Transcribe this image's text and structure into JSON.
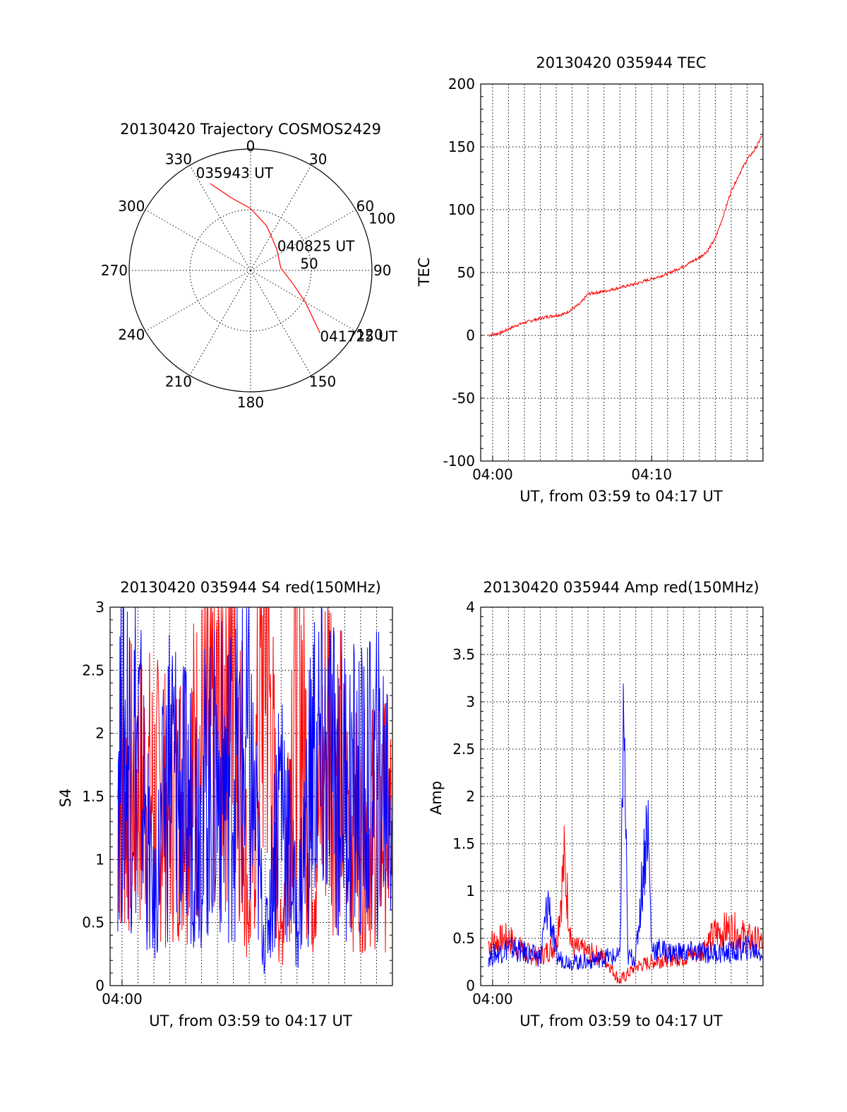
{
  "chart_data": [
    {
      "type": "polar",
      "title": "20130420 Trajectory COSMOS2429",
      "angle_labels": [
        "0",
        "30",
        "60",
        "90",
        "120",
        "150",
        "180",
        "210",
        "240",
        "270",
        "300",
        "330"
      ],
      "radius_labels": [
        "50",
        "100"
      ],
      "rlim": [
        0,
        100
      ],
      "series": [
        {
          "color": "#ff0000",
          "points": [
            {
              "az": 335,
              "r": 79
            },
            {
              "az": 345,
              "r": 62
            },
            {
              "az": 0,
              "r": 51
            },
            {
              "az": 20,
              "r": 39
            },
            {
              "az": 50,
              "r": 28
            },
            {
              "az": 85,
              "r": 25
            },
            {
              "az": 108,
              "r": 37
            },
            {
              "az": 120,
              "r": 52
            },
            {
              "az": 128,
              "r": 66
            },
            {
              "az": 132,
              "r": 77
            }
          ]
        }
      ],
      "annotations": [
        "035943 UT",
        "040825 UT",
        "041725 UT"
      ]
    },
    {
      "type": "line",
      "title": "20130420 035944 TEC",
      "xlabel": "UT, from 03:59 to 04:17 UT",
      "ylabel": "TEC",
      "x_tick_labels": [
        "04:00",
        "04:10"
      ],
      "y_ticks": [
        -100,
        -50,
        0,
        50,
        100,
        150,
        200
      ],
      "xlim": [
        "03:59",
        "04:17"
      ],
      "ylim": [
        -100,
        200
      ],
      "grid": true,
      "series": [
        {
          "color": "#ff0000",
          "x": [
            "03:59:44",
            "04:00:30",
            "04:01:30",
            "04:02:30",
            "04:03:30",
            "04:04:30",
            "04:05:30",
            "04:06:00",
            "04:07:00",
            "04:08:00",
            "04:09:00",
            "04:10:00",
            "04:11:00",
            "04:12:00",
            "04:13:00",
            "04:13:30",
            "04:14:00",
            "04:14:30",
            "04:15:00",
            "04:15:30",
            "04:16:00",
            "04:16:30",
            "04:16:59"
          ],
          "values": [
            0,
            2,
            8,
            12,
            15,
            17,
            25,
            33,
            35,
            38,
            41,
            45,
            49,
            55,
            62,
            67,
            77,
            95,
            115,
            128,
            140,
            148,
            160
          ]
        }
      ]
    },
    {
      "type": "line",
      "title": "20130420 035944 S4 red(150MHz)",
      "xlabel": "UT, from 03:59 to 04:17 UT",
      "ylabel": "S4",
      "x_tick_labels": [
        "04:00"
      ],
      "y_ticks": [
        0,
        0.5,
        1,
        1.5,
        2,
        2.5,
        3
      ],
      "xlim": [
        "03:59",
        "04:17"
      ],
      "ylim": [
        0,
        3
      ],
      "grid": true,
      "series": [
        {
          "color": "#ff0000",
          "x": [
            "03:59:44",
            "04:01:00",
            "04:02:00",
            "04:03:00",
            "04:04:00",
            "04:05:00",
            "04:06:00",
            "04:07:00",
            "04:08:00",
            "04:09:00",
            "04:10:00",
            "04:11:00",
            "04:12:00",
            "04:13:00",
            "04:14:00",
            "04:15:00",
            "04:16:00",
            "04:16:59"
          ],
          "values": [
            1.5,
            1.6,
            1.5,
            1.4,
            1.6,
            1.8,
            2.0,
            3.0,
            0.5,
            3.0,
            0.3,
            3.0,
            0.8,
            2.2,
            1.4,
            1.2,
            1.3,
            1.3
          ]
        },
        {
          "color": "#0000ff",
          "x": [
            "03:59:44",
            "04:01:00",
            "04:02:00",
            "04:03:00",
            "04:04:00",
            "04:05:00",
            "04:06:00",
            "04:07:00",
            "04:08:00",
            "04:09:00",
            "04:10:00",
            "04:11:00",
            "04:12:00",
            "04:13:00",
            "04:14:00",
            "04:15:00",
            "04:16:00",
            "04:16:59"
          ],
          "values": [
            2.0,
            1.9,
            0.6,
            1.8,
            1.4,
            1.5,
            1.6,
            1.7,
            1.8,
            0.3,
            1.7,
            0.5,
            1.8,
            1.7,
            1.6,
            1.5,
            1.6,
            1.6
          ]
        }
      ]
    },
    {
      "type": "line",
      "title": "20130420 035944 Amp red(150MHz)",
      "xlabel": "UT, from 03:59 to 04:17 UT",
      "ylabel": "Amp",
      "x_tick_labels": [
        "04:00"
      ],
      "y_ticks": [
        0,
        0.5,
        1,
        1.5,
        2,
        2.5,
        3,
        3.5,
        4
      ],
      "xlim": [
        "03:59",
        "04:17"
      ],
      "ylim": [
        0,
        4
      ],
      "grid": true,
      "series": [
        {
          "color": "#ff0000",
          "x": [
            "03:59:44",
            "04:01:00",
            "04:02:00",
            "04:03:00",
            "04:04:00",
            "04:04:30",
            "04:05:00",
            "04:06:00",
            "04:07:00",
            "04:08:00",
            "04:09:00",
            "04:10:00",
            "04:11:00",
            "04:12:00",
            "04:13:00",
            "04:14:00",
            "04:15:00",
            "04:16:00",
            "04:16:59"
          ],
          "values": [
            0.45,
            0.5,
            0.35,
            0.3,
            0.45,
            1.3,
            0.4,
            0.35,
            0.3,
            0.05,
            0.2,
            0.25,
            0.3,
            0.3,
            0.35,
            0.55,
            0.6,
            0.5,
            0.45
          ]
        },
        {
          "color": "#0000ff",
          "x": [
            "03:59:44",
            "04:01:00",
            "04:02:00",
            "04:03:00",
            "04:03:30",
            "04:04:00",
            "04:05:00",
            "04:06:00",
            "04:07:00",
            "04:08:00",
            "04:08:15",
            "04:08:30",
            "04:09:00",
            "04:09:45",
            "04:10:00",
            "04:11:00",
            "04:12:00",
            "04:13:00",
            "04:14:00",
            "04:15:00",
            "04:16:00",
            "04:16:59"
          ],
          "values": [
            0.3,
            0.4,
            0.35,
            0.3,
            0.9,
            0.3,
            0.25,
            0.25,
            0.3,
            0.3,
            2.9,
            0.3,
            0.3,
            1.8,
            0.4,
            0.35,
            0.35,
            0.35,
            0.35,
            0.35,
            0.4,
            0.35
          ]
        }
      ]
    }
  ]
}
